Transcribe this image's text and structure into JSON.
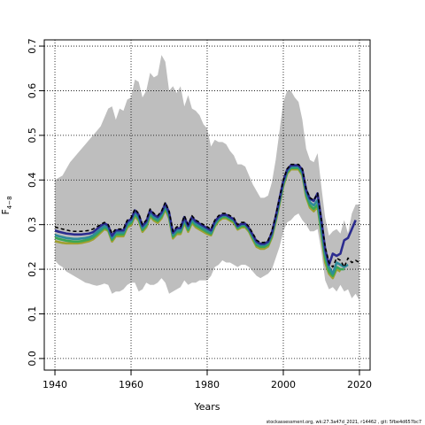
{
  "chart_data": {
    "type": "line",
    "xlabel": "Years",
    "ylabel": "F",
    "ylabel_subscript": "4−8",
    "footer": "stockassessment.org, wk:27.3a47d_2021, r14462 , git: 5fbe4d657bc7",
    "grid": true,
    "xlim": [
      1937.2,
      2022.8
    ],
    "ylim": [
      -0.026,
      0.714
    ],
    "xticks": [
      1940,
      1960,
      1980,
      2000,
      2020
    ],
    "yticks": [
      {
        "value": 0,
        "label": "0.0"
      },
      0.1,
      0.2,
      0.3,
      0.4,
      0.5,
      0.6,
      0.7
    ],
    "x": [
      1940,
      1941,
      1942,
      1943,
      1944,
      1945,
      1946,
      1947,
      1948,
      1949,
      1950,
      1951,
      1952,
      1953,
      1954,
      1955,
      1956,
      1957,
      1958,
      1959,
      1960,
      1961,
      1962,
      1963,
      1964,
      1965,
      1966,
      1967,
      1968,
      1969,
      1970,
      1971,
      1972,
      1973,
      1974,
      1975,
      1976,
      1977,
      1978,
      1979,
      1980,
      1981,
      1982,
      1983,
      1984,
      1985,
      1986,
      1987,
      1988,
      1989,
      1990,
      1991,
      1992,
      1993,
      1994,
      1995,
      1996,
      1997,
      1998,
      1999,
      2000,
      2001,
      2002,
      2003,
      2004,
      2005,
      2006,
      2007,
      2008,
      2009,
      2010,
      2011,
      2012,
      2013,
      2014,
      2015,
      2016,
      2017,
      2018,
      2019,
      2020
    ],
    "band": {
      "color": "#bebebe",
      "upper": [
        0.4,
        0.405,
        0.41,
        0.425,
        0.44,
        0.45,
        0.46,
        0.47,
        0.48,
        0.49,
        0.5,
        0.51,
        0.52,
        0.54,
        0.56,
        0.565,
        0.535,
        0.56,
        0.555,
        0.58,
        0.585,
        0.625,
        0.62,
        0.585,
        0.6,
        0.64,
        0.63,
        0.635,
        0.68,
        0.665,
        0.6,
        0.61,
        0.595,
        0.61,
        0.565,
        0.59,
        0.56,
        0.555,
        0.545,
        0.525,
        0.515,
        0.475,
        0.49,
        0.485,
        0.485,
        0.48,
        0.465,
        0.455,
        0.435,
        0.435,
        0.43,
        0.41,
        0.39,
        0.375,
        0.36,
        0.36,
        0.365,
        0.395,
        0.445,
        0.51,
        0.575,
        0.6,
        0.6,
        0.585,
        0.575,
        0.535,
        0.47,
        0.445,
        0.44,
        0.46,
        0.385,
        0.315,
        0.275,
        0.285,
        0.29,
        0.28,
        0.31,
        0.28,
        0.325,
        0.345,
        0.345
      ],
      "lower": [
        0.22,
        0.21,
        0.205,
        0.195,
        0.19,
        0.185,
        0.18,
        0.175,
        0.17,
        0.168,
        0.165,
        0.163,
        0.165,
        0.168,
        0.165,
        0.145,
        0.15,
        0.15,
        0.155,
        0.165,
        0.17,
        0.17,
        0.15,
        0.155,
        0.17,
        0.165,
        0.165,
        0.17,
        0.18,
        0.17,
        0.145,
        0.15,
        0.155,
        0.16,
        0.175,
        0.165,
        0.17,
        0.17,
        0.175,
        0.175,
        0.175,
        0.185,
        0.205,
        0.21,
        0.22,
        0.215,
        0.215,
        0.21,
        0.205,
        0.21,
        0.21,
        0.205,
        0.195,
        0.185,
        0.18,
        0.185,
        0.19,
        0.2,
        0.225,
        0.25,
        0.285,
        0.305,
        0.31,
        0.32,
        0.325,
        0.31,
        0.3,
        0.285,
        0.285,
        0.29,
        0.24,
        0.175,
        0.155,
        0.16,
        0.15,
        0.165,
        0.15,
        0.155,
        0.135,
        0.145,
        0.13
      ]
    },
    "series": [
      {
        "color": "#a0a030",
        "values": [
          0.263,
          0.261,
          0.259,
          0.258,
          0.258,
          0.258,
          0.258,
          0.259,
          0.261,
          0.263,
          0.267,
          0.274,
          0.282,
          0.29,
          0.286,
          0.262,
          0.274,
          0.274,
          0.274,
          0.294,
          0.299,
          0.319,
          0.309,
          0.284,
          0.294,
          0.319,
          0.309,
          0.304,
          0.314,
          0.334,
          0.314,
          0.269,
          0.279,
          0.279,
          0.304,
          0.284,
          0.304,
          0.294,
          0.289,
          0.284,
          0.279,
          0.276,
          0.296,
          0.308,
          0.314,
          0.314,
          0.309,
          0.304,
          0.289,
          0.294,
          0.294,
          0.284,
          0.266,
          0.25,
          0.246,
          0.246,
          0.251,
          0.271,
          0.306,
          0.346,
          0.386,
          0.414,
          0.424,
          0.424,
          0.424,
          0.41,
          0.362,
          0.338,
          0.33,
          0.34,
          0.28,
          0.215,
          0.19,
          0.18,
          0.2,
          0.195,
          null,
          null,
          null,
          null,
          null
        ]
      },
      {
        "color": "#3aa655",
        "values": [
          0.271,
          0.268,
          0.266,
          0.264,
          0.263,
          0.262,
          0.262,
          0.263,
          0.265,
          0.267,
          0.271,
          0.278,
          0.286,
          0.293,
          0.289,
          0.266,
          0.278,
          0.278,
          0.278,
          0.298,
          0.303,
          0.323,
          0.313,
          0.288,
          0.298,
          0.323,
          0.313,
          0.308,
          0.318,
          0.338,
          0.318,
          0.273,
          0.283,
          0.283,
          0.308,
          0.288,
          0.308,
          0.298,
          0.293,
          0.288,
          0.283,
          0.279,
          0.299,
          0.311,
          0.317,
          0.317,
          0.312,
          0.307,
          0.292,
          0.297,
          0.297,
          0.287,
          0.27,
          0.254,
          0.25,
          0.25,
          0.255,
          0.275,
          0.31,
          0.35,
          0.39,
          0.417,
          0.427,
          0.427,
          0.427,
          0.414,
          0.367,
          0.343,
          0.335,
          0.345,
          0.285,
          0.225,
          0.195,
          0.185,
          0.205,
          0.2,
          0.2,
          null,
          null,
          null,
          null
        ]
      },
      {
        "color": "#2e8b9a",
        "values": [
          0.277,
          0.274,
          0.272,
          0.27,
          0.269,
          0.268,
          0.268,
          0.269,
          0.27,
          0.272,
          0.276,
          0.283,
          0.29,
          0.297,
          0.293,
          0.27,
          0.282,
          0.282,
          0.282,
          0.302,
          0.307,
          0.327,
          0.317,
          0.292,
          0.302,
          0.327,
          0.317,
          0.312,
          0.322,
          0.342,
          0.322,
          0.277,
          0.287,
          0.287,
          0.312,
          0.292,
          0.312,
          0.302,
          0.297,
          0.292,
          0.287,
          0.282,
          0.302,
          0.314,
          0.32,
          0.32,
          0.315,
          0.31,
          0.295,
          0.3,
          0.3,
          0.29,
          0.274,
          0.258,
          0.254,
          0.254,
          0.259,
          0.279,
          0.314,
          0.354,
          0.394,
          0.42,
          0.43,
          0.43,
          0.43,
          0.418,
          0.372,
          0.35,
          0.343,
          0.355,
          0.295,
          0.235,
          0.205,
          0.19,
          0.215,
          0.21,
          0.205,
          0.21,
          null,
          null,
          null
        ]
      },
      {
        "color": "#2b2b8f",
        "values": [
          0.287,
          0.284,
          0.282,
          0.28,
          0.279,
          0.278,
          0.278,
          0.278,
          0.279,
          0.28,
          0.283,
          0.29,
          0.297,
          0.303,
          0.298,
          0.275,
          0.287,
          0.287,
          0.287,
          0.307,
          0.312,
          0.332,
          0.322,
          0.297,
          0.307,
          0.332,
          0.322,
          0.317,
          0.327,
          0.347,
          0.327,
          0.282,
          0.292,
          0.292,
          0.317,
          0.297,
          0.317,
          0.307,
          0.302,
          0.297,
          0.292,
          0.287,
          0.307,
          0.317,
          0.322,
          0.322,
          0.317,
          0.312,
          0.297,
          0.302,
          0.302,
          0.292,
          0.277,
          0.262,
          0.257,
          0.257,
          0.262,
          0.282,
          0.318,
          0.358,
          0.398,
          0.423,
          0.433,
          0.433,
          0.433,
          0.423,
          0.378,
          0.358,
          0.353,
          0.37,
          0.31,
          0.245,
          0.21,
          0.235,
          0.23,
          0.235,
          0.265,
          0.27,
          0.29,
          0.31,
          null
        ]
      },
      {
        "color": "#000000",
        "dashed": true,
        "values": [
          0.295,
          0.292,
          0.29,
          0.288,
          0.286,
          0.285,
          0.285,
          0.285,
          0.286,
          0.287,
          0.29,
          0.295,
          0.3,
          0.305,
          0.3,
          0.28,
          0.29,
          0.29,
          0.29,
          0.31,
          0.315,
          0.335,
          0.325,
          0.3,
          0.31,
          0.335,
          0.325,
          0.32,
          0.33,
          0.35,
          0.33,
          0.285,
          0.295,
          0.295,
          0.32,
          0.3,
          0.32,
          0.31,
          0.305,
          0.3,
          0.295,
          0.29,
          0.31,
          0.32,
          0.325,
          0.325,
          0.32,
          0.315,
          0.3,
          0.305,
          0.305,
          0.295,
          0.28,
          0.265,
          0.26,
          0.26,
          0.265,
          0.285,
          0.32,
          0.36,
          0.4,
          0.425,
          0.435,
          0.435,
          0.435,
          0.425,
          0.38,
          0.36,
          0.355,
          0.37,
          0.31,
          0.25,
          0.215,
          0.205,
          0.225,
          0.22,
          0.205,
          0.225,
          0.215,
          0.22,
          0.215
        ]
      }
    ]
  }
}
